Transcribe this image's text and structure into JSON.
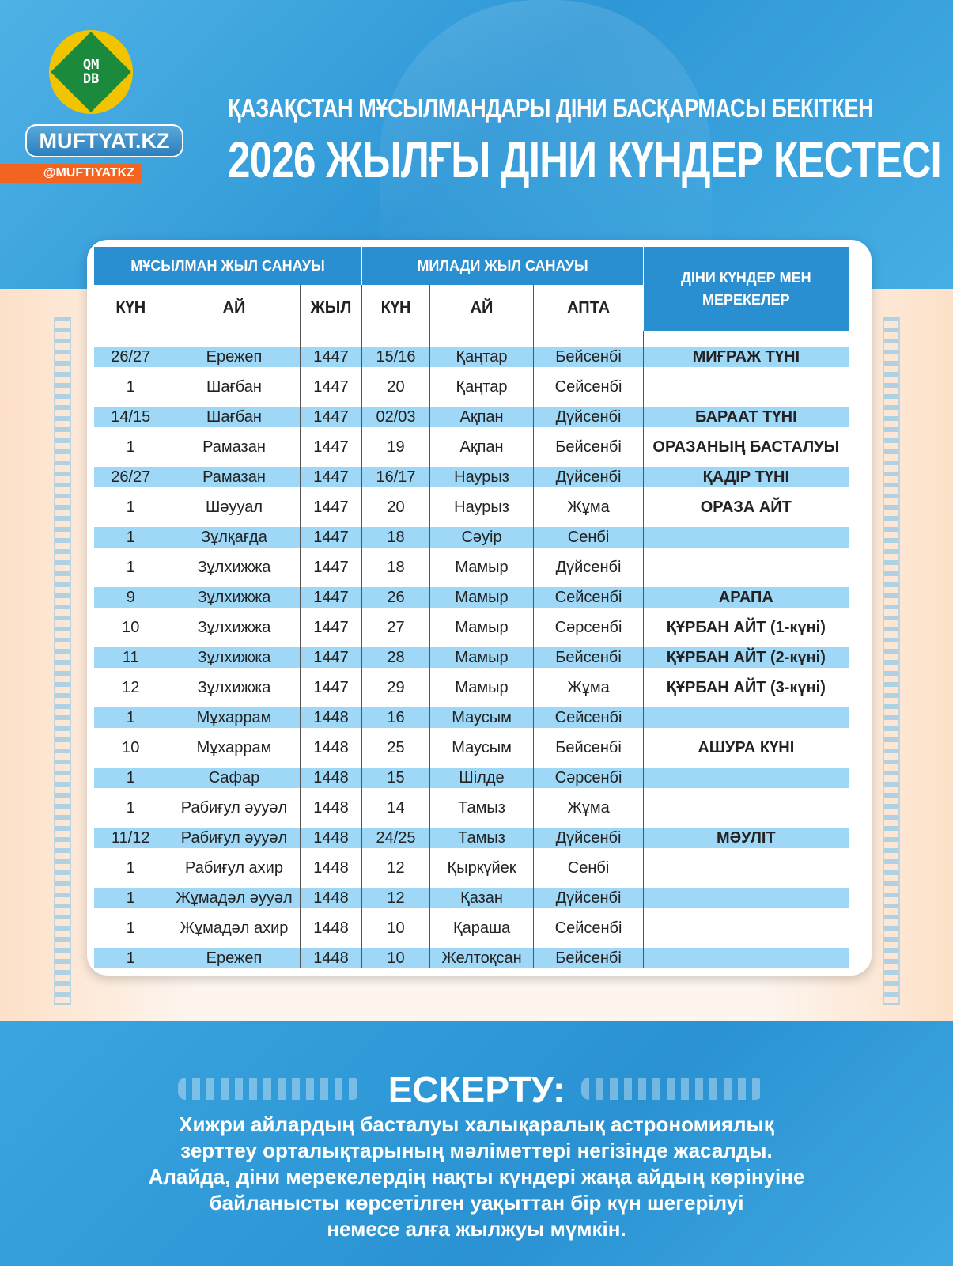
{
  "brand": {
    "logo_text": "QMDB",
    "site": "MUFTYAT.KZ",
    "handle": "@MUFTIYATKZ",
    "colors": {
      "primary": "#2a8fd0",
      "row_highlight": "#9fd8f7",
      "handle_bg": "#f2641f",
      "logo_gold": "#f2c400",
      "logo_green": "#1b8a3c"
    }
  },
  "header": {
    "line1": "ҚАЗАҚСТАН МҰСЫЛМАНДАРЫ ДІНИ БАСҚАРМАСЫ БЕКІТКЕН",
    "line2": "2026 ЖЫЛҒЫ ДІНИ КҮНДЕР КЕСТЕСІ"
  },
  "table": {
    "group_headers": [
      "МҰСЫЛМАН ЖЫЛ САНАУЫ",
      "МИЛАДИ ЖЫЛ САНАУЫ",
      "ДІНИ КҮНДЕР МЕН МЕРЕКЕЛЕР"
    ],
    "columns": [
      "КҮН",
      "АЙ",
      "ЖЫЛ",
      "КҮН",
      "АЙ",
      "АПТА"
    ],
    "rows": [
      [
        "26/27",
        "Ережеп",
        "1447",
        "15/16",
        "Қаңтар",
        "Бейсенбі",
        "МИҒРАЖ ТҮНІ"
      ],
      [
        "1",
        "Шағбан",
        "1447",
        "20",
        "Қаңтар",
        "Сейсенбі",
        ""
      ],
      [
        "14/15",
        "Шағбан",
        "1447",
        "02/03",
        "Ақпан",
        "Дүйсенбі",
        "БАРААТ ТҮНІ"
      ],
      [
        "1",
        "Рамазан",
        "1447",
        "19",
        "Ақпан",
        "Бейсенбі",
        "ОРАЗАНЫҢ БАСТАЛУЫ"
      ],
      [
        "26/27",
        "Рамазан",
        "1447",
        "16/17",
        "Наурыз",
        "Дүйсенбі",
        "ҚАДІР ТҮНІ"
      ],
      [
        "1",
        "Шәууал",
        "1447",
        "20",
        "Наурыз",
        "Жұма",
        "ОРАЗА АЙТ"
      ],
      [
        "1",
        "Зұлқағда",
        "1447",
        "18",
        "Сәуір",
        "Сенбі",
        ""
      ],
      [
        "1",
        "Зұлхижжа",
        "1447",
        "18",
        "Мамыр",
        "Дүйсенбі",
        ""
      ],
      [
        "9",
        "Зұлхижжа",
        "1447",
        "26",
        "Мамыр",
        "Сейсенбі",
        "АРАПА"
      ],
      [
        "10",
        "Зұлхижжа",
        "1447",
        "27",
        "Мамыр",
        "Сәрсенбі",
        "ҚҰРБАН АЙТ (1-күні)"
      ],
      [
        "11",
        "Зұлхижжа",
        "1447",
        "28",
        "Мамыр",
        "Бейсенбі",
        "ҚҰРБАН АЙТ (2-күні)"
      ],
      [
        "12",
        "Зұлхижжа",
        "1447",
        "29",
        "Мамыр",
        "Жұма",
        "ҚҰРБАН АЙТ (3-күні)"
      ],
      [
        "1",
        "Мұхаррам",
        "1448",
        "16",
        "Маусым",
        "Сейсенбі",
        ""
      ],
      [
        "10",
        "Мұхаррам",
        "1448",
        "25",
        "Маусым",
        "Бейсенбі",
        "АШУРА КҮНІ"
      ],
      [
        "1",
        "Сафар",
        "1448",
        "15",
        "Шілде",
        "Сәрсенбі",
        ""
      ],
      [
        "1",
        "Рабиғул әууәл",
        "1448",
        "14",
        "Тамыз",
        "Жұма",
        ""
      ],
      [
        "11/12",
        "Рабиғул әууәл",
        "1448",
        "24/25",
        "Тамыз",
        "Дүйсенбі",
        "МӘУЛІТ"
      ],
      [
        "1",
        "Рабиғул ахир",
        "1448",
        "12",
        "Қыркүйек",
        "Сенбі",
        ""
      ],
      [
        "1",
        "Жұмадәл әууәл",
        "1448",
        "12",
        "Қазан",
        "Дүйсенбі",
        ""
      ],
      [
        "1",
        "Жұмадәл ахир",
        "1448",
        "10",
        "Қараша",
        "Сейсенбі",
        ""
      ],
      [
        "1",
        "Ережеп",
        "1448",
        "10",
        "Желтоқсан",
        "Бейсенбі",
        ""
      ]
    ]
  },
  "note": {
    "title": "ЕСКЕРТУ:",
    "lines": [
      "Хижри айлардың басталуы халықаралық астрономиялық",
      "зерттеу орталықтарының мәліметтері негізінде жасалды.",
      "Алайда, діни мерекелердің нақты күндері жаңа айдың көрінуіне",
      "байланысты көрсетілген уақыттан бір күн шегерілуі",
      "немесе алға жылжуы мүмкін."
    ]
  }
}
